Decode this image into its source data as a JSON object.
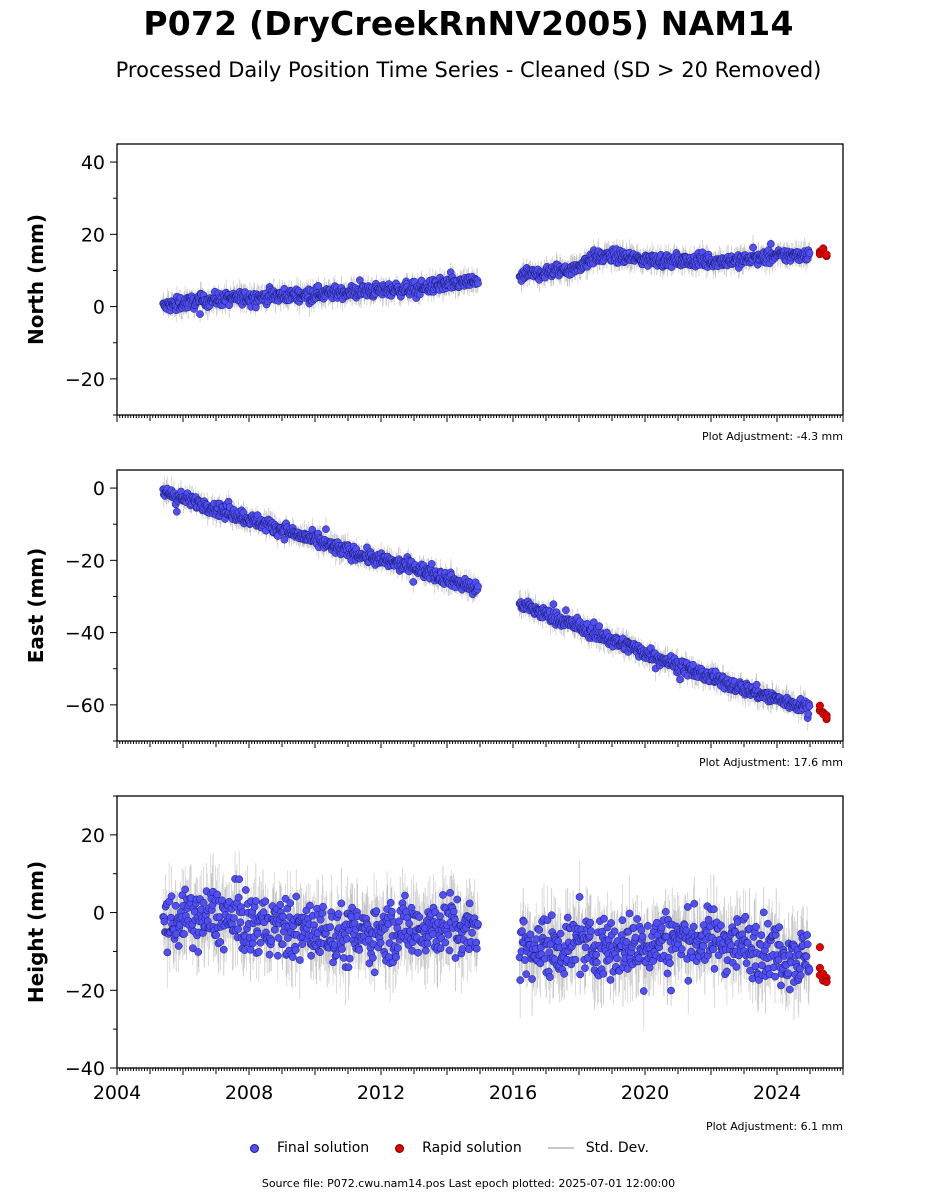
{
  "title": "P072 (DryCreekRnNV2005) NAM14",
  "subtitle": "Processed Daily Position Time Series - Cleaned (SD > 20 Removed)",
  "source_text": "Source file: P072.cwu.nam14.pos  Last epoch plotted: 2025-07-01 12:00:00",
  "legend": {
    "final": "Final solution",
    "rapid": "Rapid solution",
    "std": "Std. Dev."
  },
  "colors": {
    "final": "#4f4ff5",
    "final_edge": "#1a1a6e",
    "rapid": "#e00000",
    "std": "#c8c8c8",
    "std_dark": "#555555"
  },
  "chart_data": [
    {
      "type": "scatter",
      "ylabel": "North (mm)",
      "adjustment": "Plot Adjustment: -4.3 mm",
      "xlim": [
        2004.0,
        2026.0
      ],
      "ylim": [
        -30,
        45
      ],
      "yticks": [
        "40",
        "20",
        "0",
        "−20"
      ],
      "ytick_values": [
        40,
        20,
        0,
        -20
      ],
      "gap": [
        2014.95,
        2016.2
      ],
      "series": [
        {
          "name": "Final solution",
          "x": [
            2005.4,
            2006.0,
            2007.0,
            2008.0,
            2009.0,
            2010.0,
            2011.0,
            2012.0,
            2013.0,
            2014.0,
            2014.9,
            2016.2,
            2016.7,
            2017.3,
            2017.9,
            2018.4,
            2019.0,
            2020.0,
            2021.0,
            2022.0,
            2023.0,
            2024.0,
            2025.0
          ],
          "y": [
            0.0,
            1.0,
            2.0,
            2.5,
            3.0,
            3.5,
            4.0,
            4.5,
            5.0,
            6.0,
            7.0,
            8.5,
            9.0,
            10.0,
            10.5,
            13.5,
            14.0,
            13.0,
            12.5,
            12.5,
            13.0,
            14.0,
            14.5
          ]
        },
        {
          "name": "Rapid solution",
          "x": [
            2025.3,
            2025.4,
            2025.5
          ],
          "y": [
            14.5,
            15.0,
            14.2
          ]
        }
      ]
    },
    {
      "type": "scatter",
      "ylabel": "East (mm)",
      "adjustment": "Plot Adjustment: 17.6 mm",
      "xlim": [
        2004.0,
        2026.0
      ],
      "ylim": [
        -70,
        5
      ],
      "yticks": [
        "0",
        "−20",
        "−40",
        "−60"
      ],
      "ytick_values": [
        0,
        -20,
        -40,
        -60
      ],
      "gap": [
        2014.95,
        2016.2
      ],
      "series": [
        {
          "name": "Final solution",
          "x": [
            2005.4,
            2006.0,
            2007.0,
            2008.0,
            2009.0,
            2010.0,
            2011.0,
            2012.0,
            2013.0,
            2014.0,
            2014.9,
            2016.2,
            2017.0,
            2018.0,
            2019.0,
            2020.0,
            2021.0,
            2022.0,
            2023.0,
            2024.0,
            2025.0
          ],
          "y": [
            -1.0,
            -3.0,
            -5.5,
            -8.5,
            -11.5,
            -14.5,
            -17.5,
            -20.0,
            -22.0,
            -25.0,
            -28.0,
            -32.0,
            -35.0,
            -38.5,
            -42.0,
            -45.5,
            -49.0,
            -52.5,
            -55.5,
            -58.5,
            -61.0
          ]
        },
        {
          "name": "Rapid solution",
          "x": [
            2025.3,
            2025.4,
            2025.5
          ],
          "y": [
            -61.0,
            -62.5,
            -63.5
          ]
        }
      ]
    },
    {
      "type": "scatter",
      "ylabel": "Height (mm)",
      "adjustment": "Plot Adjustment: 6.1 mm",
      "xlim": [
        2004.0,
        2026.0
      ],
      "ylim": [
        -40,
        30
      ],
      "yticks": [
        "20",
        "0",
        "−20",
        "−40"
      ],
      "ytick_values": [
        20,
        0,
        -20,
        -40
      ],
      "xticks": [
        "2004",
        "2008",
        "2012",
        "2016",
        "2020",
        "2024"
      ],
      "xtick_values": [
        2004,
        2008,
        2012,
        2016,
        2020,
        2024
      ],
      "gap": [
        2014.95,
        2016.2
      ],
      "series": [
        {
          "name": "Final solution",
          "x": [
            2005.4,
            2006.0,
            2007.0,
            2008.0,
            2009.0,
            2010.0,
            2011.0,
            2012.0,
            2013.0,
            2014.0,
            2014.9,
            2016.2,
            2017.0,
            2018.0,
            2019.0,
            2020.0,
            2021.0,
            2022.0,
            2023.0,
            2024.0,
            2025.0
          ],
          "y": [
            -3,
            -2,
            -1,
            -3,
            -4,
            -5,
            -6,
            -5,
            -4,
            -3,
            -4,
            -8,
            -9,
            -8,
            -9,
            -8,
            -7,
            -7,
            -8,
            -10,
            -12
          ]
        },
        {
          "name": "Rapid solution",
          "x": [
            2025.3,
            2025.4,
            2025.5
          ],
          "y": [
            -14,
            -17,
            -19
          ]
        }
      ]
    }
  ]
}
